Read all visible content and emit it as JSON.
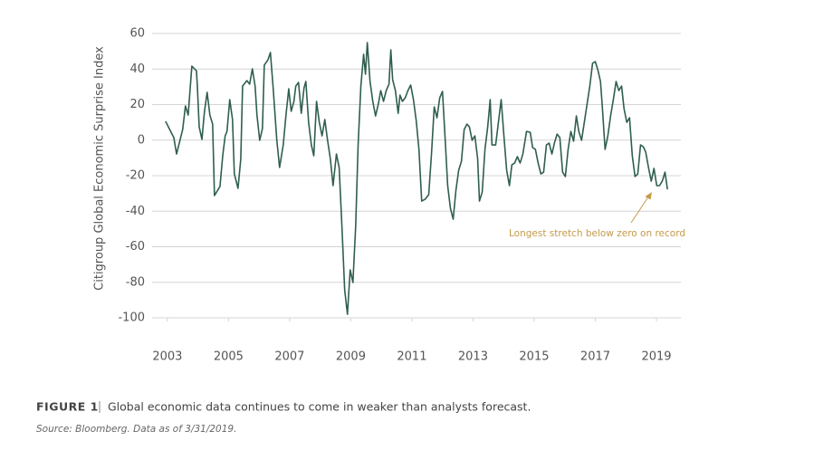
{
  "chart_data": {
    "type": "line",
    "y_label": "Citigroup Global Economic Surprise Index",
    "color": "#2f5e4f",
    "grid": true,
    "xlim": [
      2002.5,
      2019.8
    ],
    "xticks": [
      2003,
      2005,
      2007,
      2009,
      2011,
      2013,
      2015,
      2017,
      2019
    ],
    "ylim": [
      -100,
      60
    ],
    "yticks": [
      -100,
      -80,
      -60,
      -40,
      -20,
      0,
      20,
      40,
      60
    ],
    "annotations": [
      {
        "text": "Longest stretch below zero on record"
      }
    ],
    "figure_label": "FIGURE 1",
    "caption": "Global economic data continues to come in weaker than analysts forecast.",
    "source": "Source: Bloomberg. Data as of 3/31/2019.",
    "x": [
      2002.94,
      2003.21,
      2003.3,
      2003.5,
      2003.59,
      2003.68,
      2003.8,
      2003.95,
      2003.98,
      2004.04,
      2004.13,
      2004.21,
      2004.3,
      2004.39,
      2004.48,
      2004.54,
      2004.72,
      2004.81,
      2004.89,
      2004.95,
      2005.04,
      2005.13,
      2005.19,
      2005.31,
      2005.4,
      2005.46,
      2005.6,
      2005.69,
      2005.78,
      2005.87,
      2005.93,
      2006.02,
      2006.11,
      2006.17,
      2006.29,
      2006.37,
      2006.46,
      2006.58,
      2006.67,
      2006.79,
      2006.88,
      2006.97,
      2007.05,
      2007.14,
      2007.2,
      2007.29,
      2007.38,
      2007.47,
      2007.53,
      2007.62,
      2007.71,
      2007.79,
      2007.88,
      2007.97,
      2008.06,
      2008.15,
      2008.24,
      2008.33,
      2008.42,
      2008.53,
      2008.62,
      2008.71,
      2008.8,
      2008.89,
      2008.98,
      2009.07,
      2009.16,
      2009.24,
      2009.33,
      2009.42,
      2009.48,
      2009.54,
      2009.63,
      2009.72,
      2009.81,
      2009.9,
      2009.98,
      2010.07,
      2010.16,
      2010.25,
      2010.31,
      2010.37,
      2010.46,
      2010.55,
      2010.61,
      2010.69,
      2010.78,
      2010.87,
      2010.96,
      2011.05,
      2011.14,
      2011.23,
      2011.32,
      2011.43,
      2011.55,
      2011.64,
      2011.73,
      2011.82,
      2011.91,
      2012.0,
      2012.09,
      2012.17,
      2012.26,
      2012.35,
      2012.44,
      2012.53,
      2012.62,
      2012.71,
      2012.8,
      2012.88,
      2012.97,
      2013.06,
      2013.15,
      2013.21,
      2013.3,
      2013.39,
      2013.48,
      2013.56,
      2013.62,
      2013.74,
      2013.83,
      2013.92,
      2014.01,
      2014.1,
      2014.19,
      2014.27,
      2014.36,
      2014.45,
      2014.54,
      2014.63,
      2014.75,
      2014.87,
      2014.95,
      2015.04,
      2015.13,
      2015.22,
      2015.31,
      2015.4,
      2015.49,
      2015.58,
      2015.67,
      2015.75,
      2015.84,
      2015.93,
      2016.02,
      2016.11,
      2016.2,
      2016.29,
      2016.38,
      2016.46,
      2016.55,
      2016.64,
      2016.73,
      2016.82,
      2016.91,
      2017.0,
      2017.09,
      2017.17,
      2017.23,
      2017.32,
      2017.41,
      2017.5,
      2017.59,
      2017.68,
      2017.77,
      2017.86,
      2017.94,
      2018.03,
      2018.12,
      2018.21,
      2018.3,
      2018.39,
      2018.48,
      2018.57,
      2018.65,
      2018.74,
      2018.83,
      2018.92,
      2019.01,
      2019.1,
      2019.19,
      2019.28,
      2019.36
    ],
    "values": [
      10.6,
      1.4,
      -7.8,
      6.0,
      19.2,
      14.1,
      41.6,
      39.1,
      30.4,
      7.5,
      0.4,
      15.6,
      26.9,
      14.1,
      9.0,
      -31.2,
      -26.1,
      -8.8,
      2.4,
      4.9,
      22.8,
      11.6,
      -19.0,
      -27.1,
      -10.8,
      30.4,
      33.5,
      31.5,
      40.1,
      30.4,
      14.1,
      -0.1,
      6.5,
      42.2,
      45.2,
      49.3,
      29.4,
      -0.1,
      -15.4,
      -2.7,
      14.1,
      28.9,
      16.2,
      21.8,
      30.4,
      32.5,
      15.1,
      29.4,
      33.0,
      10.0,
      -2.7,
      -8.8,
      21.8,
      10.0,
      2.4,
      11.6,
      -0.1,
      -10.3,
      -25.6,
      -7.8,
      -15.4,
      -48.5,
      -84.2,
      -98.0,
      -73.0,
      -80.1,
      -48.5,
      -2.7,
      30.4,
      48.3,
      37.1,
      54.9,
      33.0,
      21.8,
      13.6,
      20.2,
      27.9,
      21.8,
      27.9,
      31.5,
      50.8,
      34.0,
      27.9,
      15.1,
      25.3,
      21.8,
      23.8,
      27.9,
      31.0,
      22.8,
      11.1,
      -5.2,
      -34.3,
      -33.3,
      -30.7,
      -7.8,
      18.7,
      12.6,
      23.8,
      27.4,
      -0.1,
      -25.6,
      -38.4,
      -44.5,
      -28.2,
      -17.0,
      -11.9,
      6.0,
      9.0,
      7.5,
      -0.1,
      2.4,
      -10.3,
      -34.3,
      -29.2,
      -5.2,
      7.5,
      22.8,
      -2.7,
      -2.7,
      10.0,
      22.8,
      2.4,
      -17.0,
      -25.6,
      -13.9,
      -12.9,
      -9.3,
      -12.9,
      -7.8,
      4.9,
      4.4,
      -4.2,
      -5.2,
      -12.9,
      -19.0,
      -18.0,
      -2.7,
      -1.7,
      -7.8,
      -1.2,
      3.4,
      1.4,
      -18.0,
      -20.5,
      -5.2,
      4.9,
      -0.6,
      13.6,
      4.9,
      -0.1,
      10.0,
      20.2,
      30.4,
      43.2,
      44.2,
      39.1,
      33.0,
      18.7,
      -5.2,
      2.4,
      13.6,
      22.8,
      33.0,
      27.9,
      30.4,
      17.7,
      10.0,
      12.6,
      -8.8,
      -20.5,
      -19.0,
      -2.7,
      -3.7,
      -6.8,
      -15.4,
      -23.1,
      -15.9,
      -25.6,
      -25.6,
      -23.1,
      -18.0,
      -27.7
    ]
  }
}
